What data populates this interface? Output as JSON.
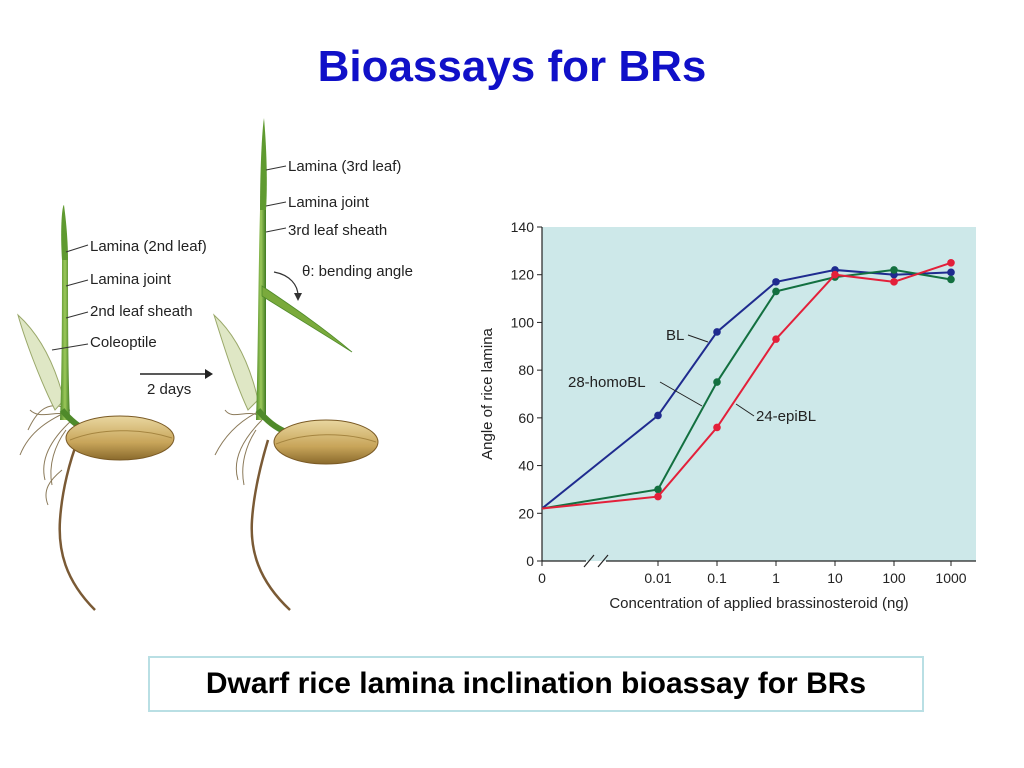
{
  "slide": {
    "title": "Bioassays for BRs",
    "caption": "Dwarf rice lamina inclination bioassay for BRs"
  },
  "illustration": {
    "labels_left": [
      "Lamina (2nd leaf)",
      "Lamina joint",
      "2nd leaf sheath",
      "Coleoptile"
    ],
    "labels_right": [
      "Lamina (3rd leaf)",
      "Lamina joint",
      "3rd leaf sheath"
    ],
    "angle_label": "θ: bending angle",
    "arrow_label": "2 days"
  },
  "chart_data": {
    "type": "line",
    "categories": [
      "0",
      "0.01",
      "0.1",
      "1",
      "10",
      "100",
      "1000"
    ],
    "xlabel": "Concentration of applied brassinosteroid (ng)",
    "ylabel": "Angle of rice lamina",
    "ylim": [
      0,
      140
    ],
    "yticks": [
      0,
      20,
      40,
      60,
      80,
      100,
      120,
      140
    ],
    "grid": false,
    "axis_break": "between 0 and 0.01",
    "colors": {
      "plot_bg": "#cde8e9",
      "BL": "#1f2b8f",
      "28-homoBL": "#137040",
      "24-epiBL": "#e3203a"
    },
    "series": [
      {
        "name": "BL",
        "values": [
          22,
          61,
          96,
          117,
          122,
          120,
          121
        ]
      },
      {
        "name": "28-homoBL",
        "values": [
          22,
          30,
          75,
          113,
          119,
          122,
          118
        ]
      },
      {
        "name": "24-epiBL",
        "values": [
          22,
          27,
          56,
          93,
          120,
          117,
          125
        ]
      }
    ]
  }
}
